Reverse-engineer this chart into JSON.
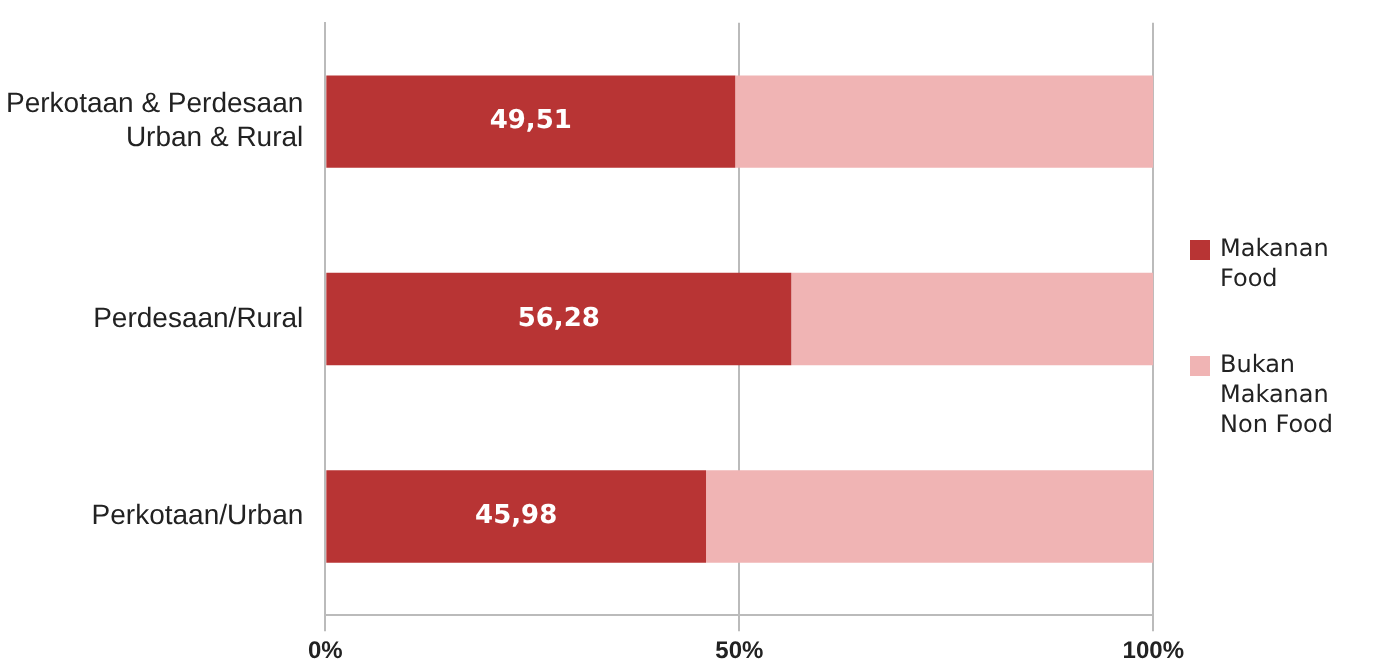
{
  "chart_data": {
    "type": "bar",
    "orientation": "horizontal",
    "stacked": true,
    "categories": [
      "Perkotaan & Perdesaan\nUrban & Rural",
      "Perdesaan/Rural",
      "Perkotaan/Urban"
    ],
    "series": [
      {
        "name": "Makanan\nFood",
        "color": "#b83434",
        "values": [
          49.51,
          56.28,
          45.98
        ],
        "value_labels": [
          "49,51",
          "56,28",
          "45,98"
        ]
      },
      {
        "name": "Bukan Makanan\nNon Food",
        "color": "#f0b4b4",
        "values": [
          50.49,
          43.72,
          54.02
        ]
      }
    ],
    "xlim": [
      0,
      100
    ],
    "xticks": [
      {
        "value": 0,
        "label": "0%"
      },
      {
        "value": 50,
        "label": "50%"
      },
      {
        "value": 100,
        "label": "100%"
      }
    ],
    "grid": "x",
    "legend": "right"
  }
}
